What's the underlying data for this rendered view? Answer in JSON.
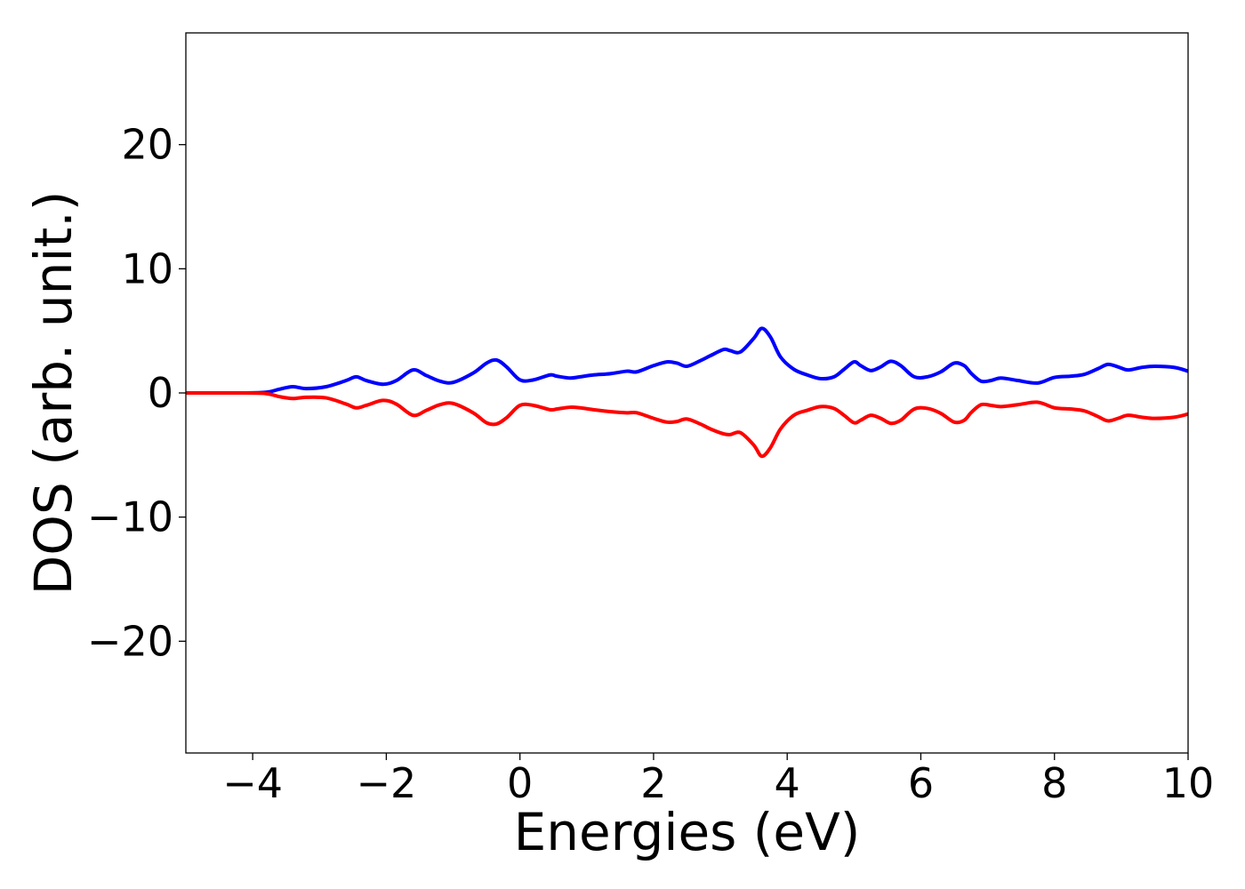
{
  "chart_data": {
    "type": "line",
    "title": "",
    "xlabel": "Energies (eV)",
    "ylabel": "DOS (arb. unit.)",
    "xlim": [
      -5,
      10
    ],
    "ylim": [
      -29,
      29
    ],
    "x_ticks": [
      -4,
      -2,
      0,
      2,
      4,
      6,
      8,
      10
    ],
    "x_tick_labels": [
      "−4",
      "−2",
      "0",
      "2",
      "4",
      "6",
      "8",
      "10"
    ],
    "y_ticks": [
      -20,
      -10,
      0,
      10,
      20
    ],
    "y_tick_labels": [
      "−20",
      "−10",
      "0",
      "10",
      "20"
    ],
    "grid": false,
    "legend": "none",
    "series": [
      {
        "color": "#0000ff",
        "x": [
          -5,
          -4.2,
          -3.8,
          -3.6,
          -3.4,
          -3.2,
          -2.9,
          -2.6,
          -2.45,
          -2.3,
          -2.05,
          -1.85,
          -1.6,
          -1.4,
          -1.2,
          -1.0,
          -0.7,
          -0.5,
          -0.35,
          -0.2,
          0.0,
          0.2,
          0.45,
          0.55,
          0.75,
          0.9,
          1.1,
          1.35,
          1.6,
          1.75,
          2.0,
          2.2,
          2.35,
          2.5,
          2.7,
          2.85,
          3.05,
          3.15,
          3.3,
          3.5,
          3.62,
          3.75,
          3.9,
          4.1,
          4.3,
          4.5,
          4.7,
          4.85,
          5.0,
          5.1,
          5.25,
          5.4,
          5.55,
          5.7,
          5.9,
          6.1,
          6.3,
          6.5,
          6.65,
          6.75,
          6.9,
          7.05,
          7.2,
          7.45,
          7.75,
          8.0,
          8.25,
          8.45,
          8.65,
          8.8,
          8.95,
          9.1,
          9.3,
          9.5,
          9.8,
          10.0
        ],
        "values": [
          0,
          0,
          0.05,
          0.3,
          0.5,
          0.35,
          0.5,
          1.0,
          1.3,
          1.0,
          0.7,
          1.0,
          1.85,
          1.4,
          0.95,
          0.85,
          1.6,
          2.4,
          2.65,
          2.1,
          1.05,
          1.05,
          1.45,
          1.35,
          1.2,
          1.3,
          1.45,
          1.55,
          1.75,
          1.7,
          2.2,
          2.5,
          2.4,
          2.15,
          2.6,
          3.0,
          3.5,
          3.4,
          3.3,
          4.4,
          5.2,
          4.5,
          2.9,
          1.9,
          1.45,
          1.15,
          1.3,
          1.9,
          2.5,
          2.2,
          1.8,
          2.1,
          2.55,
          2.2,
          1.3,
          1.3,
          1.7,
          2.4,
          2.2,
          1.6,
          0.95,
          1.0,
          1.2,
          1.0,
          0.8,
          1.25,
          1.35,
          1.5,
          1.95,
          2.3,
          2.1,
          1.85,
          2.05,
          2.15,
          2.05,
          1.75
        ]
      },
      {
        "color": "#ff0000",
        "x": [
          -5,
          -4.2,
          -3.8,
          -3.6,
          -3.4,
          -3.2,
          -2.9,
          -2.6,
          -2.45,
          -2.3,
          -2.05,
          -1.85,
          -1.6,
          -1.4,
          -1.2,
          -1.0,
          -0.7,
          -0.5,
          -0.35,
          -0.2,
          0.0,
          0.2,
          0.45,
          0.55,
          0.75,
          0.9,
          1.1,
          1.35,
          1.6,
          1.75,
          2.0,
          2.2,
          2.35,
          2.5,
          2.7,
          2.85,
          3.05,
          3.15,
          3.3,
          3.5,
          3.62,
          3.75,
          3.9,
          4.1,
          4.3,
          4.5,
          4.7,
          4.85,
          5.0,
          5.1,
          5.25,
          5.4,
          5.55,
          5.7,
          5.9,
          6.1,
          6.3,
          6.5,
          6.65,
          6.75,
          6.9,
          7.05,
          7.2,
          7.45,
          7.75,
          8.0,
          8.25,
          8.45,
          8.65,
          8.8,
          8.95,
          9.1,
          9.3,
          9.5,
          9.8,
          10.0
        ],
        "values": [
          0,
          0,
          -0.05,
          -0.3,
          -0.45,
          -0.35,
          -0.4,
          -0.9,
          -1.2,
          -1.0,
          -0.6,
          -0.9,
          -1.8,
          -1.4,
          -0.95,
          -0.85,
          -1.6,
          -2.4,
          -2.5,
          -2.0,
          -1.0,
          -1.0,
          -1.35,
          -1.3,
          -1.15,
          -1.2,
          -1.35,
          -1.5,
          -1.6,
          -1.6,
          -2.05,
          -2.35,
          -2.3,
          -2.1,
          -2.5,
          -2.9,
          -3.3,
          -3.35,
          -3.2,
          -4.2,
          -5.1,
          -4.4,
          -2.9,
          -1.8,
          -1.4,
          -1.1,
          -1.25,
          -1.8,
          -2.4,
          -2.2,
          -1.8,
          -2.05,
          -2.45,
          -2.2,
          -1.3,
          -1.25,
          -1.65,
          -2.35,
          -2.2,
          -1.6,
          -0.95,
          -1.0,
          -1.1,
          -0.95,
          -0.75,
          -1.2,
          -1.3,
          -1.45,
          -1.9,
          -2.25,
          -2.05,
          -1.8,
          -1.95,
          -2.05,
          -1.95,
          -1.7
        ]
      }
    ]
  }
}
